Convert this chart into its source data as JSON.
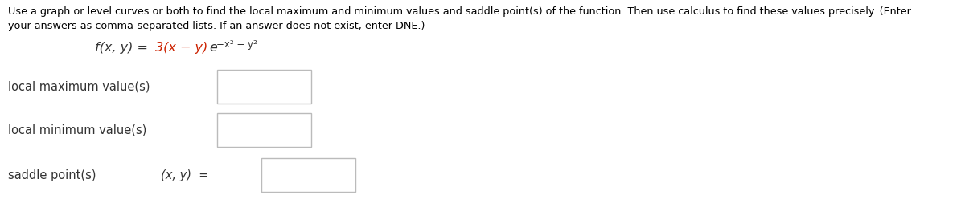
{
  "bg_color": "#ffffff",
  "instruction_line1": "Use a graph or level curves or both to find the local maximum and minimum values and saddle point(s) of the function. Then use calculus to find these values precisely. (Enter",
  "instruction_line2": "your answers as comma-separated lists. If an answer does not exist, enter DNE.)",
  "instruction_fontsize": 9.2,
  "instruction_color": "#000000",
  "func_prefix": "f(x, y) = ",
  "func_colored": "3(x − y)",
  "func_exp_base": "e",
  "func_exp_power": "−x² − y²",
  "func_prefix_color": "#333333",
  "func_colored_color": "#cc2200",
  "func_exp_color": "#333333",
  "func_fontsize": 11.5,
  "func_super_fontsize": 8.5,
  "labels": [
    "local maximum value(s)",
    "local minimum value(s)",
    "saddle point(s)"
  ],
  "label_color": "#333333",
  "label_fontsize": 10.5,
  "saddle_prefix": "(x, y)  =",
  "box_edge_color": "#bbbbbb",
  "box_face_color": "#ffffff"
}
